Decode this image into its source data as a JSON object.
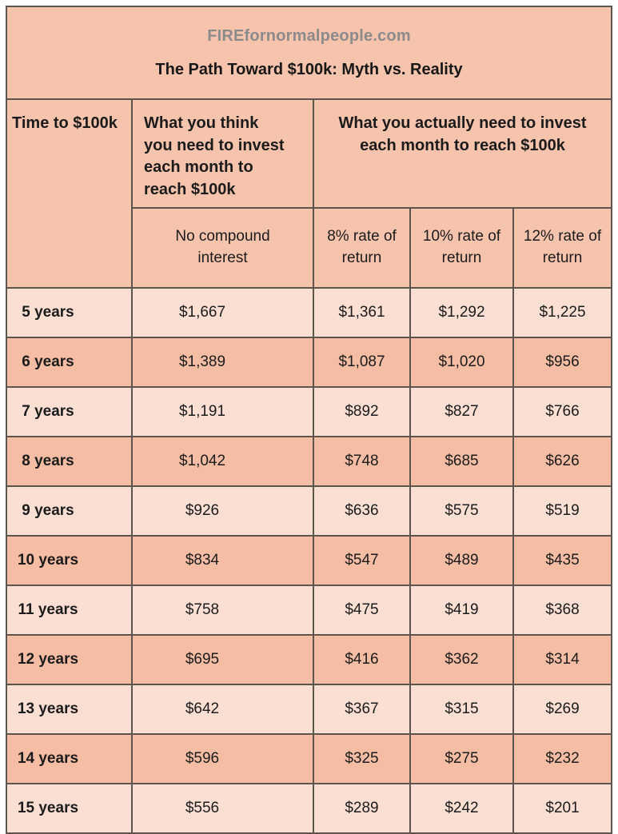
{
  "header": {
    "site": "FIREfornormalpeople.com",
    "title": "The Path Toward $100k: Myth vs. Reality"
  },
  "table": {
    "time_header": "Time to $100k",
    "myth_header_lines": [
      "What you think",
      "you need to invest",
      "each month to",
      "reach $100k"
    ],
    "reality_header_lines": [
      "What you actually need to invest",
      "each month to reach $100k"
    ],
    "sub_headers": [
      [
        "No compound",
        "interest"
      ],
      [
        "8% rate of",
        "return"
      ],
      [
        "10% rate of",
        "return"
      ],
      [
        "12% rate of",
        "return"
      ]
    ],
    "rows": [
      {
        "label": "5 years",
        "values": [
          "$1,667",
          "$1,361",
          "$1,292",
          "$1,225"
        ]
      },
      {
        "label": "6 years",
        "values": [
          "$1,389",
          "$1,087",
          "$1,020",
          "$956"
        ]
      },
      {
        "label": "7 years",
        "values": [
          "$1,191",
          "$892",
          "$827",
          "$766"
        ]
      },
      {
        "label": "8 years",
        "values": [
          "$1,042",
          "$748",
          "$685",
          "$626"
        ]
      },
      {
        "label": "9 years",
        "values": [
          "$926",
          "$636",
          "$575",
          "$519"
        ]
      },
      {
        "label": "10 years",
        "values": [
          "$834",
          "$547",
          "$489",
          "$435"
        ]
      },
      {
        "label": "11 years",
        "values": [
          "$758",
          "$475",
          "$419",
          "$368"
        ]
      },
      {
        "label": "12 years",
        "values": [
          "$695",
          "$416",
          "$362",
          "$314"
        ]
      },
      {
        "label": "13 years",
        "values": [
          "$642",
          "$367",
          "$315",
          "$269"
        ]
      },
      {
        "label": "14 years",
        "values": [
          "$596",
          "$325",
          "$275",
          "$232"
        ]
      },
      {
        "label": "15 years",
        "values": [
          "$556",
          "$289",
          "$242",
          "$201"
        ]
      }
    ]
  },
  "colors": {
    "header_bg": "#f6c3ac",
    "row_light_bg": "#fbdfd3",
    "row_dark_bg": "#f4bda4",
    "border": "#5e544e",
    "site_text": "#8b8b8b",
    "text": "#1b1b1b"
  },
  "chart_data": {
    "type": "table",
    "title": "The Path Toward $100k: Myth vs. Reality",
    "subtitle": "FIREfornormalpeople.com",
    "columns": [
      "Time to $100k",
      "No compound interest",
      "8% rate of return",
      "10% rate of return",
      "12% rate of return"
    ],
    "column_groups": [
      "What you think you need to invest each month to reach $100k",
      "What you actually need to invest each month to reach $100k"
    ],
    "rows": [
      [
        "5 years",
        "$1,667",
        "$1,361",
        "$1,292",
        "$1,225"
      ],
      [
        "6 years",
        "$1,389",
        "$1,087",
        "$1,020",
        "$956"
      ],
      [
        "7 years",
        "$1,191",
        "$892",
        "$827",
        "$766"
      ],
      [
        "8 years",
        "$1,042",
        "$748",
        "$685",
        "$626"
      ],
      [
        "9 years",
        "$926",
        "$636",
        "$575",
        "$519"
      ],
      [
        "10 years",
        "$834",
        "$547",
        "$489",
        "$435"
      ],
      [
        "11 years",
        "$758",
        "$475",
        "$419",
        "$368"
      ],
      [
        "12 years",
        "$695",
        "$416",
        "$362",
        "$314"
      ],
      [
        "13 years",
        "$642",
        "$367",
        "$315",
        "$269"
      ],
      [
        "14 years",
        "$596",
        "$325",
        "$275",
        "$232"
      ],
      [
        "15 years",
        "$556",
        "$289",
        "$242",
        "$201"
      ]
    ]
  }
}
